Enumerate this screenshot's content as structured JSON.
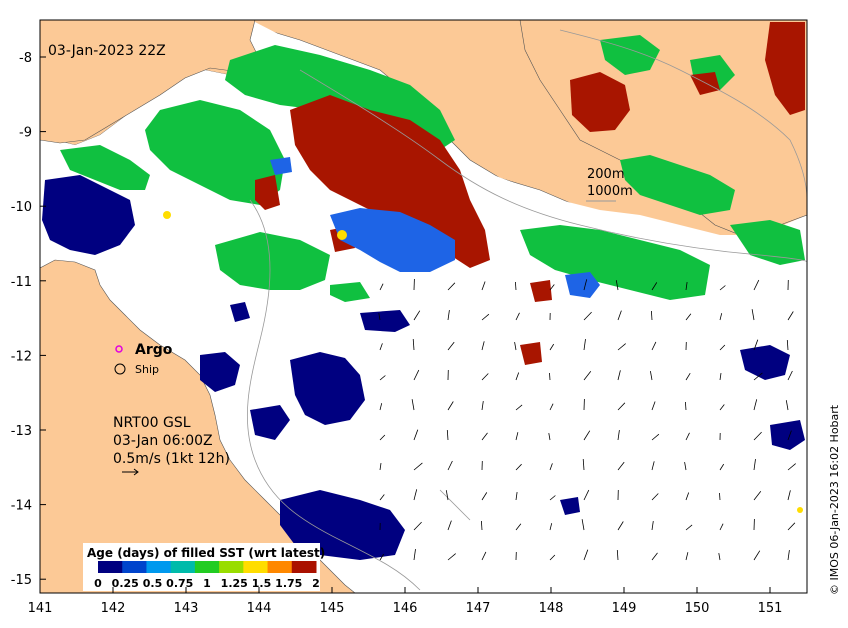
{
  "map": {
    "timestamp": "03-Jan-2023 22Z",
    "contour_labels": [
      "200m",
      "1000m"
    ],
    "argo_label": "Argo",
    "ship_label": "Ship",
    "currents_source": "NRT00 GSL",
    "currents_time": "03-Jan 06:00Z",
    "currents_scale": "0.5m/s (1kt 12h)",
    "credit": "© IMOS 06-Jan-2023 16:02 Hobart",
    "x_ticks": [
      "141",
      "142",
      "143",
      "144",
      "145",
      "146",
      "147",
      "148",
      "149",
      "150",
      "151"
    ],
    "y_ticks": [
      "-8",
      "-9",
      "-10",
      "-11",
      "-12",
      "-13",
      "-14",
      "-15"
    ],
    "colorbar": {
      "title": "Age (days) of filled SST (wrt latest)",
      "ticks": [
        "0",
        "0.25",
        "0.5",
        "0.75",
        "1",
        "1.25",
        "1.5",
        "1.75",
        "2"
      ],
      "colors": [
        "#000080",
        "#0044cc",
        "#0099ee",
        "#00bbaa",
        "#22cc22",
        "#99dd00",
        "#ffdd00",
        "#ff8800",
        "#aa1100"
      ]
    },
    "colors": {
      "land": "#fcc996",
      "water": "#ffffff",
      "old": "#000080",
      "recent_blue": "#1e64e6",
      "green": "#10c040",
      "dark_red": "#a81500"
    }
  }
}
